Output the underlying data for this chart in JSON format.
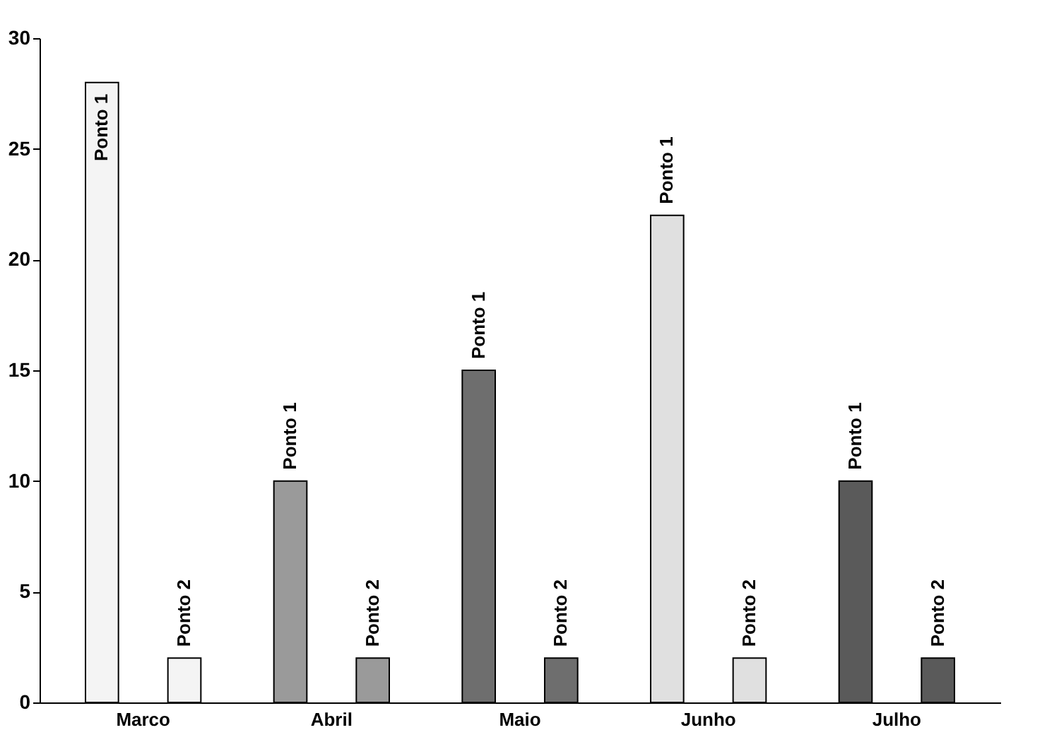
{
  "chart_data": {
    "type": "bar",
    "categories": [
      "Marco",
      "Abril",
      "Maio",
      "Junho",
      "Julho"
    ],
    "series": [
      {
        "name": "Ponto 1",
        "colors": [
          "#f4f4f4",
          "#9a9a9a",
          "#6e6e6e",
          "#e0e0e0",
          "#5a5a5a"
        ],
        "values": [
          28,
          10,
          15,
          22,
          10
        ]
      },
      {
        "name": "Ponto 2",
        "colors": [
          "#f4f4f4",
          "#9a9a9a",
          "#6e6e6e",
          "#e0e0e0",
          "#5a5a5a"
        ],
        "values": [
          2,
          2,
          2,
          2,
          2
        ]
      }
    ],
    "ylim": [
      0,
      30
    ],
    "yticks": [
      0,
      5,
      10,
      15,
      20,
      25,
      30
    ],
    "grid": false
  }
}
